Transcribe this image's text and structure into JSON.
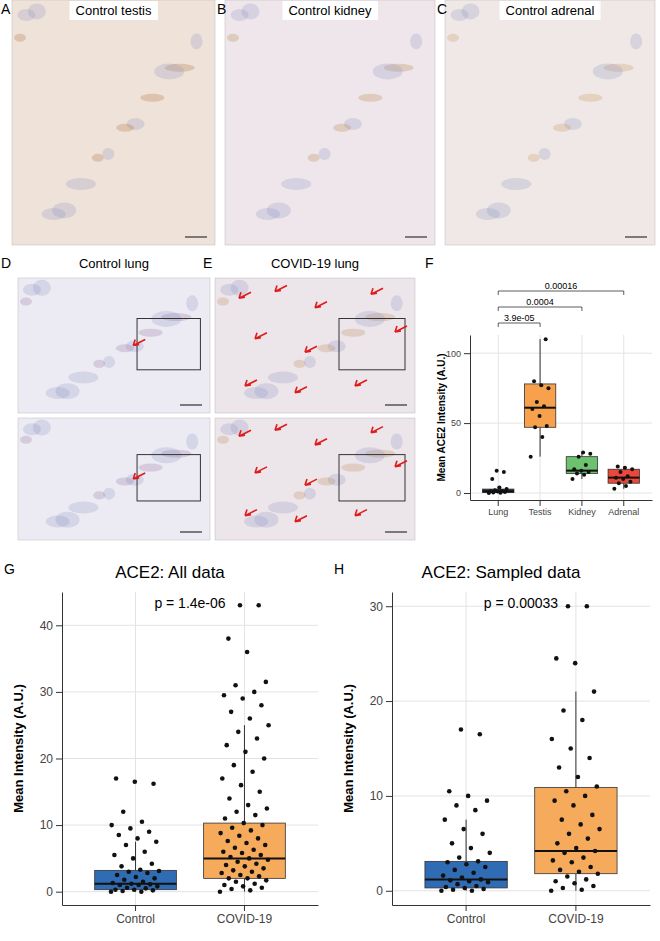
{
  "panels": [
    {
      "letter": "A",
      "title": "Control testis"
    },
    {
      "letter": "B",
      "title": "Control kidney"
    },
    {
      "letter": "C",
      "title": "Control adrenal"
    },
    {
      "letter": "D",
      "title": "Control lung"
    },
    {
      "letter": "E",
      "title": "COVID-19 lung"
    }
  ],
  "chart_data": [
    {
      "type": "box",
      "panel": "F",
      "y_label": "Mean ACE2 Intensity (A.U.)",
      "categories": [
        "Lung",
        "Testis",
        "Kidney",
        "Adrenal"
      ],
      "colors": [
        "#1d3a5f",
        "#f7a14d",
        "#6cc26f",
        "#e9483a"
      ],
      "boxes": [
        {
          "whisker_low": 0,
          "q1": 0.3,
          "median": 1.2,
          "q3": 2.8,
          "whisker_high": 5
        },
        {
          "whisker_low": 26,
          "q1": 47,
          "median": 61,
          "q3": 78,
          "whisker_high": 110
        },
        {
          "whisker_low": 10,
          "q1": 14,
          "median": 16,
          "q3": 26,
          "whisker_high": 29
        },
        {
          "whisker_low": 3,
          "q1": 7,
          "median": 11,
          "q3": 17,
          "whisker_high": 19
        }
      ],
      "points": [
        [
          0,
          0.2,
          0.4,
          0.8,
          1,
          1.2,
          1.5,
          2,
          2.8,
          4,
          10,
          15,
          16
        ],
        [
          26,
          40,
          47,
          48,
          55,
          60,
          62,
          65,
          75,
          77,
          80,
          110
        ],
        [
          10,
          13,
          14,
          15,
          16,
          17,
          20,
          26,
          28,
          29
        ],
        [
          3,
          5,
          7,
          8,
          10,
          11,
          12,
          15,
          17,
          18,
          19
        ]
      ],
      "comparisons": [
        {
          "from": 0,
          "to": 1,
          "label": "3.9e-05"
        },
        {
          "from": 0,
          "to": 2,
          "label": "0.0004"
        },
        {
          "from": 0,
          "to": 3,
          "label": "0.00016"
        }
      ],
      "ylim": [
        -5,
        113
      ],
      "yticks": [
        0,
        50,
        100
      ],
      "grid": true
    },
    {
      "type": "box",
      "panel": "G",
      "title": "ACE2: All data",
      "annotation": "p = 1.4e-06",
      "y_label": "Mean Intensity (A.U.)",
      "categories": [
        "Control",
        "COVID-19"
      ],
      "colors": [
        "#2f6cb3",
        "#f6ab5c"
      ],
      "boxes": [
        {
          "whisker_low": 0,
          "q1": 0.3,
          "median": 1.2,
          "q3": 3.2,
          "whisker_high": 7.5
        },
        {
          "whisker_low": 0,
          "q1": 2,
          "median": 5,
          "q3": 10.3,
          "whisker_high": 25
        }
      ],
      "points": [
        [
          0,
          0,
          0.1,
          0.2,
          0.3,
          0.3,
          0.5,
          0.6,
          0.8,
          1,
          1,
          1.1,
          1.2,
          1.3,
          1.5,
          1.8,
          2,
          2.2,
          2.5,
          2.8,
          3,
          3.1,
          3.3,
          3.8,
          4.2,
          5,
          5.5,
          6,
          7,
          7.5,
          8,
          8.5,
          9,
          9.5,
          10,
          10.5,
          12,
          16.2,
          16.5,
          17
        ],
        [
          0,
          0.2,
          0.4,
          0.6,
          0.8,
          1,
          1.2,
          1.5,
          1.7,
          2,
          2,
          2.3,
          2.5,
          2.8,
          3,
          3.2,
          3.5,
          3.8,
          4,
          4.2,
          4.5,
          4.8,
          5,
          5.2,
          5.5,
          5.8,
          6,
          6.3,
          6.6,
          7,
          7.3,
          7.6,
          8,
          8.4,
          8.8,
          9.2,
          9.6,
          10,
          10.3,
          11,
          11.5,
          12,
          12.5,
          13,
          14,
          15,
          16,
          17,
          18,
          19,
          20,
          21,
          22,
          23,
          24,
          25,
          26,
          27,
          28,
          29,
          29.5,
          30,
          31,
          31.5,
          36,
          38,
          43,
          43
        ]
      ],
      "ylim": [
        -2,
        45
      ],
      "yticks": [
        0,
        10,
        20,
        30,
        40
      ],
      "grid": true
    },
    {
      "type": "box",
      "panel": "H",
      "title": "ACE2: Sampled data",
      "annotation": "p = 0.00033",
      "y_label": "Mean Intensity (A.U.)",
      "categories": [
        "Control",
        "COVID-19"
      ],
      "colors": [
        "#2f6cb3",
        "#f6ab5c"
      ],
      "boxes": [
        {
          "whisker_low": 0,
          "q1": 0.3,
          "median": 1.2,
          "q3": 3.1,
          "whisker_high": 7.5
        },
        {
          "whisker_low": 0,
          "q1": 1.8,
          "median": 4.2,
          "q3": 10.9,
          "whisker_high": 21
        }
      ],
      "points": [
        [
          0,
          0,
          0.1,
          0.2,
          0.3,
          0.4,
          0.5,
          0.7,
          0.9,
          1,
          1.1,
          1.2,
          1.4,
          1.6,
          1.9,
          2.2,
          2.5,
          2.8,
          3,
          3.1,
          3.5,
          4,
          4.5,
          5,
          6,
          6.5,
          7.5,
          8.5,
          9,
          9.5,
          10,
          10.5,
          16.5,
          17
        ],
        [
          0,
          0.1,
          0.3,
          0.5,
          0.8,
          1,
          1.2,
          1.5,
          1.8,
          2,
          2.2,
          2.5,
          3,
          3.2,
          3.5,
          4,
          4.2,
          4.5,
          5,
          5.5,
          6,
          6.5,
          7,
          7.5,
          8,
          9,
          9.5,
          10,
          10.5,
          11,
          12,
          13,
          14,
          15,
          16,
          18,
          19,
          21,
          24,
          24.5,
          30,
          30
        ]
      ],
      "ylim": [
        -1.5,
        31.5
      ],
      "yticks": [
        0,
        10,
        20,
        30
      ],
      "grid": true
    }
  ]
}
